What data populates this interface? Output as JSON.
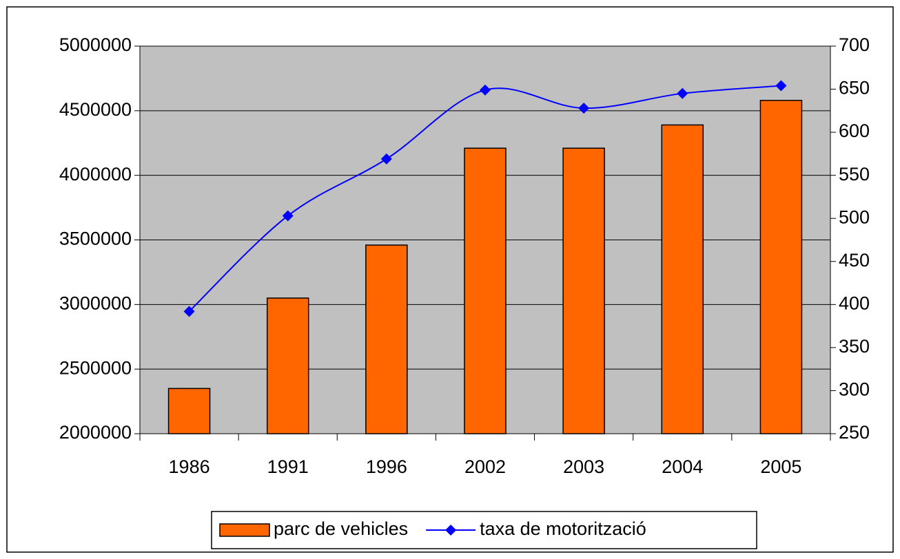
{
  "chart_data": {
    "type": "bar_line",
    "categories": [
      "1986",
      "1991",
      "1996",
      "2002",
      "2003",
      "2004",
      "2005"
    ],
    "series": [
      {
        "name": "parc de vehicles",
        "type": "bar",
        "color": "#ff6600",
        "axis": "y",
        "values": [
          2350000,
          3050000,
          3460000,
          4210000,
          4210000,
          4390000,
          4580000
        ]
      },
      {
        "name": "taxa de motorització",
        "type": "line",
        "color": "#0000ff",
        "axis": "y2",
        "values": [
          392,
          503,
          569,
          649,
          628,
          645,
          654
        ]
      }
    ],
    "ylim": [
      2000000,
      5000000
    ],
    "yticks": [
      2000000,
      2500000,
      3000000,
      3500000,
      4000000,
      4500000,
      5000000
    ],
    "y2lim": [
      250,
      700
    ],
    "y2ticks": [
      250,
      300,
      350,
      400,
      450,
      500,
      550,
      600,
      650,
      700
    ],
    "grid": true,
    "legend": "bottom",
    "plot_background": "#c0c0c0"
  }
}
